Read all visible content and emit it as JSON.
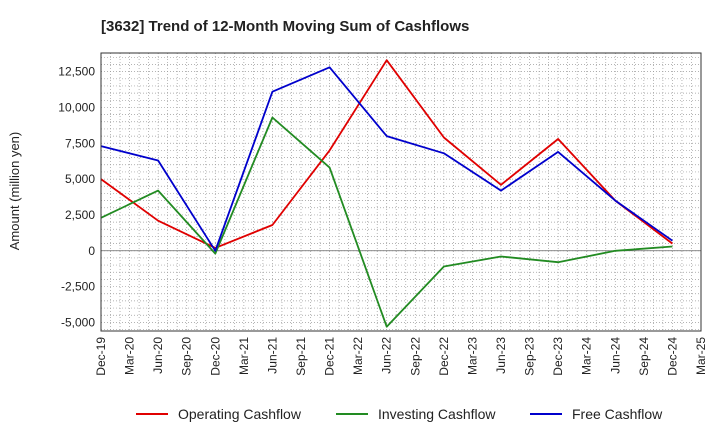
{
  "chart_data": {
    "type": "line",
    "title": "[3632]  Trend of 12-Month Moving Sum of Cashflows",
    "xlabel": "",
    "ylabel": "Amount (million yen)",
    "x_ticks": [
      "Dec-19",
      "Mar-20",
      "Jun-20",
      "Sep-20",
      "Dec-20",
      "Mar-21",
      "Jun-21",
      "Sep-21",
      "Dec-21",
      "Mar-22",
      "Jun-22",
      "Sep-22",
      "Dec-22",
      "Mar-23",
      "Jun-23",
      "Sep-23",
      "Dec-23",
      "Mar-24",
      "Jun-24",
      "Sep-24",
      "Dec-24",
      "Mar-25"
    ],
    "y_ticks": [
      12500,
      10000,
      7500,
      5000,
      2500,
      0,
      -2500,
      -5000
    ],
    "y_tick_labels": [
      "12,500",
      "10,000",
      "7,500",
      "5,000",
      "2,500",
      "0",
      "-2,500",
      "-5,000"
    ],
    "ylim": [
      -5600,
      13800
    ],
    "grid": true,
    "legend_position": "bottom",
    "series": [
      {
        "name": "Operating Cashflow",
        "color": "#e00000",
        "x": [
          "Dec-19",
          "Jun-20",
          "Dec-20",
          "Jun-21",
          "Dec-21",
          "Jun-22",
          "Dec-22",
          "Jun-23",
          "Dec-23",
          "Jun-24",
          "Dec-24"
        ],
        "values": [
          5000,
          2100,
          200,
          1800,
          7000,
          13300,
          7900,
          4600,
          7800,
          3500,
          500
        ]
      },
      {
        "name": "Investing Cashflow",
        "color": "#228b22",
        "x": [
          "Dec-19",
          "Jun-20",
          "Dec-20",
          "Jun-21",
          "Dec-21",
          "Jun-22",
          "Dec-22",
          "Jun-23",
          "Dec-23",
          "Jun-24",
          "Dec-24"
        ],
        "values": [
          2300,
          4200,
          -200,
          9300,
          5800,
          -5300,
          -1100,
          -400,
          -800,
          0,
          300
        ]
      },
      {
        "name": "Free Cashflow",
        "color": "#0000cc",
        "x": [
          "Dec-19",
          "Jun-20",
          "Dec-20",
          "Jun-21",
          "Dec-21",
          "Jun-22",
          "Dec-22",
          "Jun-23",
          "Dec-23",
          "Jun-24",
          "Dec-24"
        ],
        "values": [
          7300,
          6300,
          0,
          11100,
          12800,
          8000,
          6800,
          4200,
          6900,
          3500,
          700
        ]
      }
    ]
  }
}
